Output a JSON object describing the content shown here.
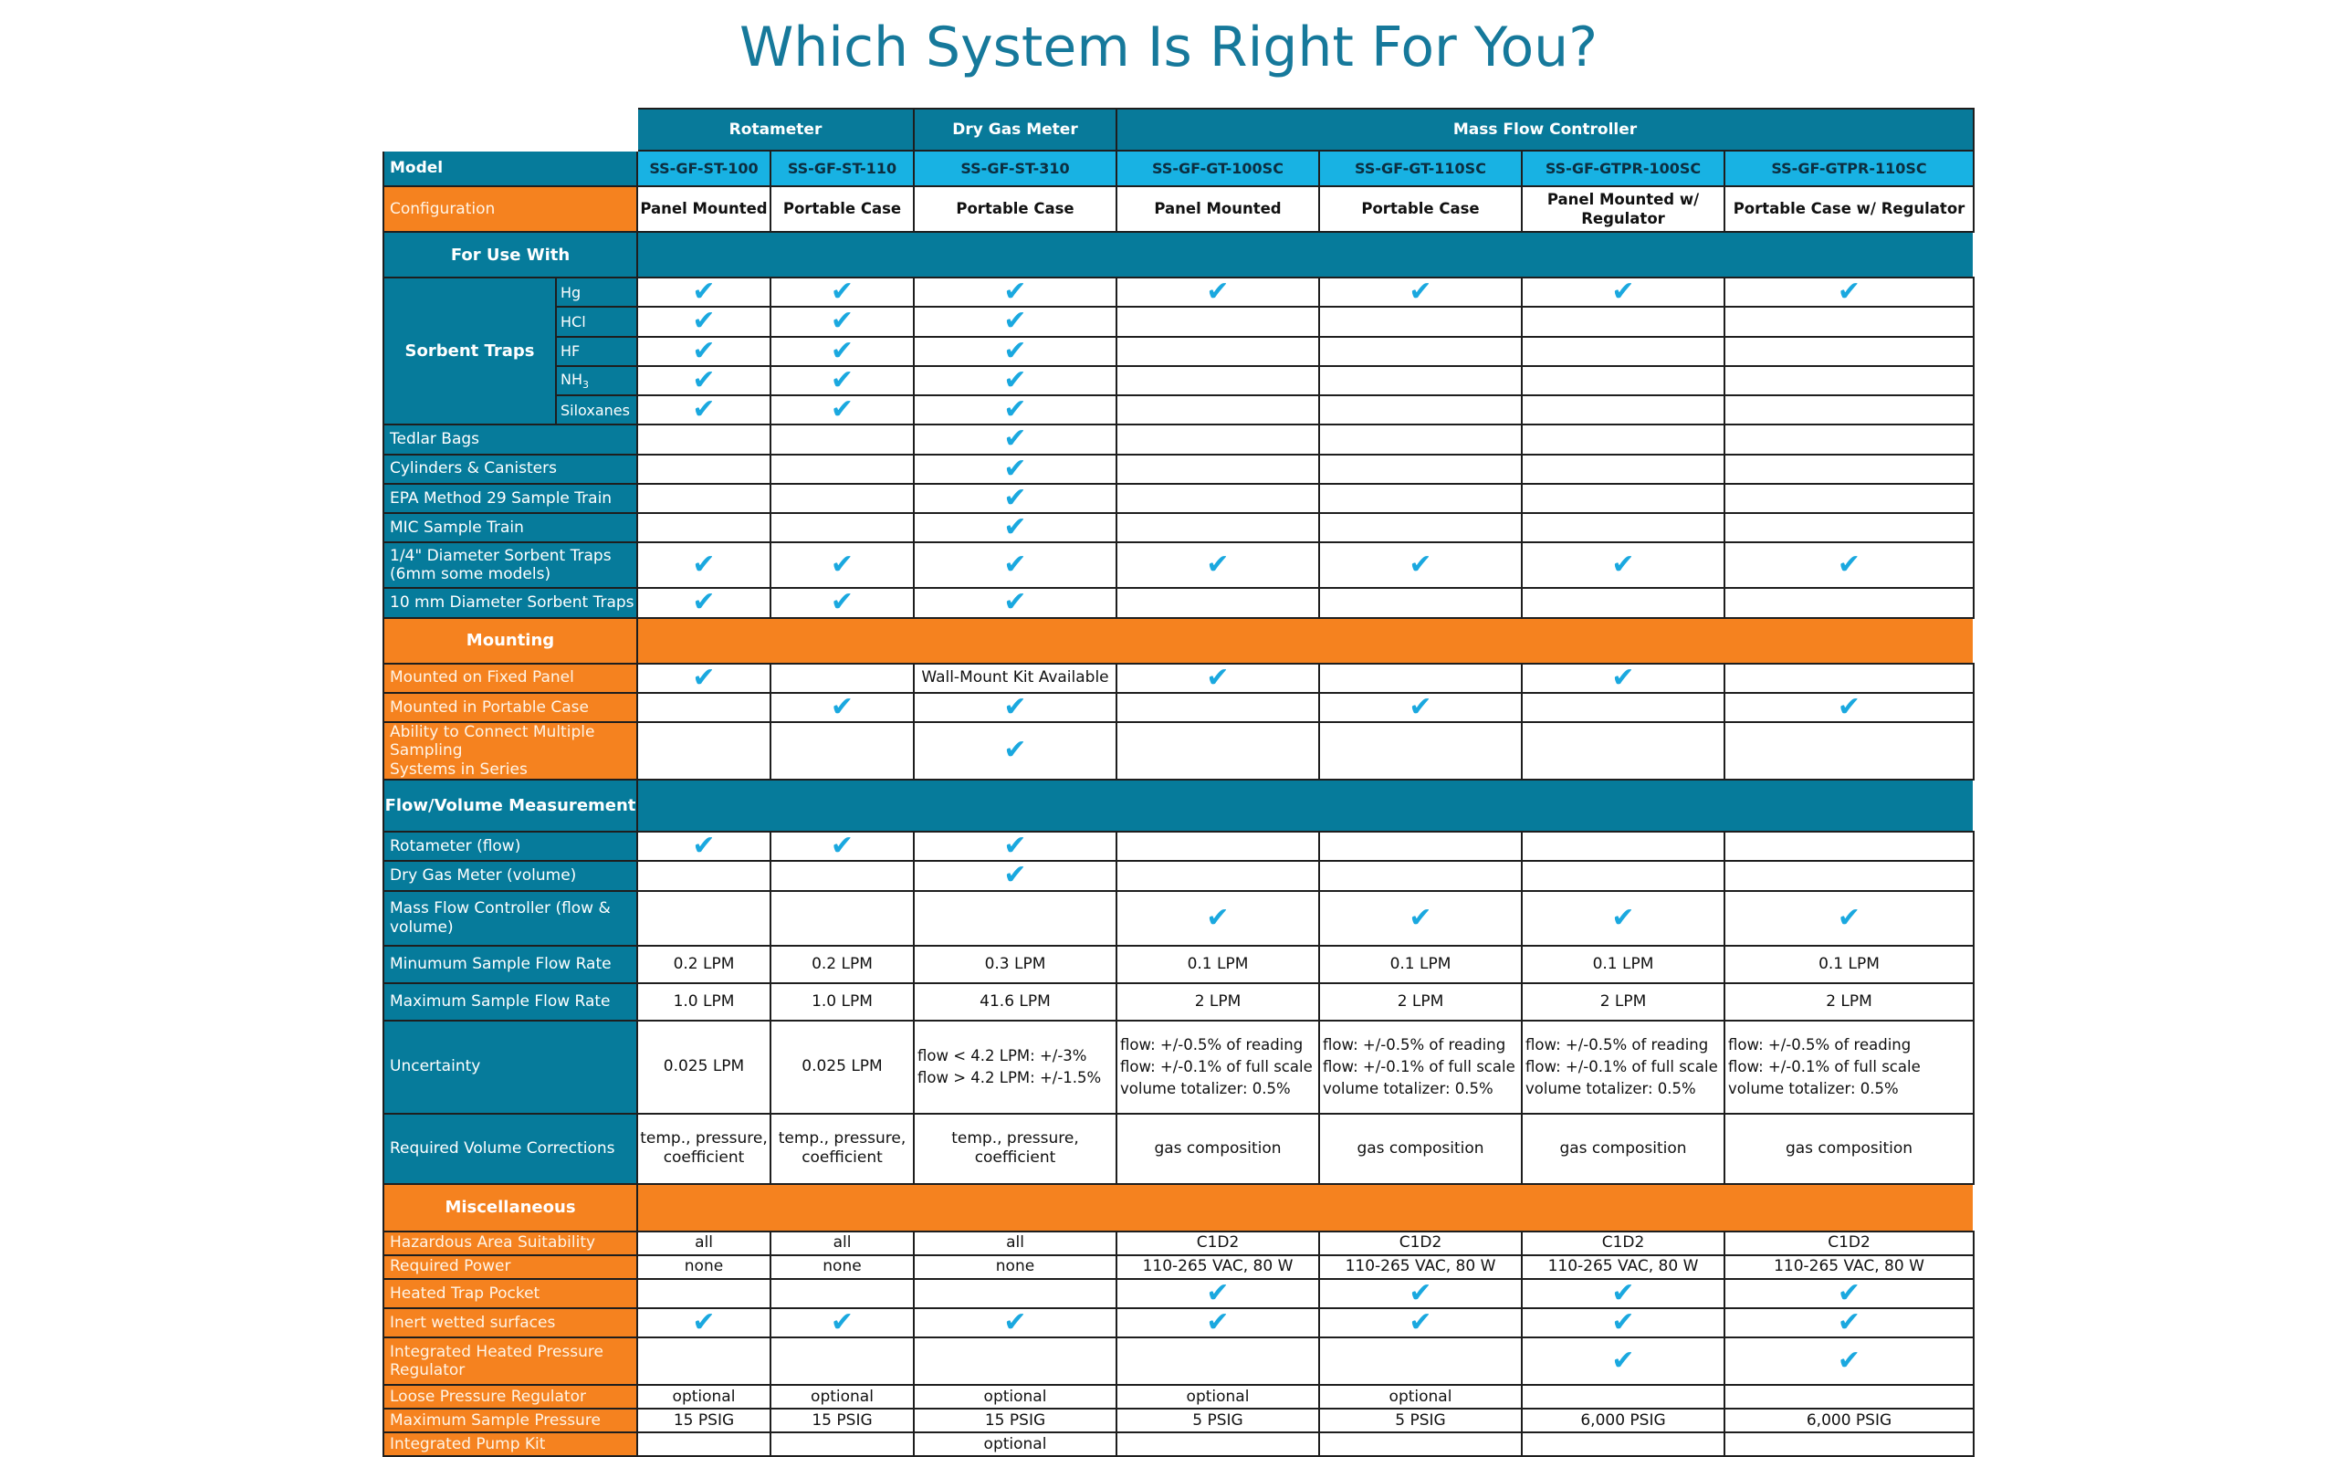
{
  "title": "Which System Is Right For You?",
  "check_color": "#1aa8df",
  "colors": {
    "teal": "#067b9b",
    "orange": "#f5821f",
    "model_blue": "#18b2e3",
    "title": "#16799b"
  },
  "header": {
    "groups": [
      "Rotameter",
      "Dry Gas Meter",
      "Mass Flow Controller"
    ],
    "model_label": "Model",
    "models": [
      "SS-GF-ST-100",
      "SS-GF-ST-110",
      "SS-GF-ST-310",
      "SS-GF-GT-100SC",
      "SS-GF-GT-110SC",
      "SS-GF-GTPR-100SC",
      "SS-GF-GTPR-110SC"
    ],
    "config_label": "Configuration",
    "configs": [
      "Panel Mounted",
      "Portable Case",
      "Portable Case",
      "Panel Mounted",
      "Portable Case",
      "Panel Mounted w/ Regulator",
      "Portable Case w/ Regulator"
    ]
  },
  "sections": {
    "use_with": "For Use With",
    "sorbent_traps": "Sorbent Traps",
    "mounting": "Mounting",
    "flow": "Flow/Volume Measurement",
    "misc": "Miscellaneous"
  },
  "sorbent": {
    "hg": {
      "label": "Hg",
      "cells": [
        true,
        true,
        true,
        true,
        true,
        true,
        true
      ]
    },
    "hcl": {
      "label": "HCl",
      "cells": [
        true,
        true,
        true,
        false,
        false,
        false,
        false
      ]
    },
    "hf": {
      "label": "HF",
      "cells": [
        true,
        true,
        true,
        false,
        false,
        false,
        false
      ]
    },
    "nh3": {
      "label": "NH",
      "sub": "3",
      "cells": [
        true,
        true,
        true,
        false,
        false,
        false,
        false
      ]
    },
    "siloxanes": {
      "label": "Siloxanes",
      "cells": [
        true,
        true,
        true,
        false,
        false,
        false,
        false
      ]
    }
  },
  "use_with": {
    "tedlar": {
      "label": "Tedlar Bags",
      "cells": [
        false,
        false,
        true,
        false,
        false,
        false,
        false
      ]
    },
    "cylinders": {
      "label": "Cylinders & Canisters",
      "cells": [
        false,
        false,
        true,
        false,
        false,
        false,
        false
      ]
    },
    "epa29": {
      "label": "EPA Method 29 Sample Train",
      "cells": [
        false,
        false,
        true,
        false,
        false,
        false,
        false
      ]
    },
    "mic": {
      "label": "MIC Sample Train",
      "cells": [
        false,
        false,
        true,
        false,
        false,
        false,
        false
      ]
    },
    "quarter_inch": {
      "label_1": "1/4\" Diameter Sorbent Traps",
      "label_2": "(6mm some models)",
      "cells": [
        true,
        true,
        true,
        true,
        true,
        true,
        true
      ]
    },
    "ten_mm": {
      "label": "10 mm Diameter Sorbent Traps",
      "cells": [
        true,
        true,
        true,
        false,
        false,
        false,
        false
      ]
    }
  },
  "mounting": {
    "fixed_panel": {
      "label": "Mounted on Fixed Panel",
      "cells": [
        true,
        false,
        "Wall-Mount Kit Available",
        true,
        false,
        true,
        false
      ]
    },
    "portable_case": {
      "label": "Mounted in Portable Case",
      "cells": [
        false,
        true,
        true,
        false,
        true,
        false,
        true
      ]
    },
    "series": {
      "label_1": "Ability to Connect Multiple Sampling",
      "label_2": "Systems in Series",
      "cells": [
        false,
        false,
        true,
        false,
        false,
        false,
        false
      ]
    }
  },
  "flow": {
    "rotameter": {
      "label": "Rotameter (flow)",
      "cells": [
        true,
        true,
        true,
        false,
        false,
        false,
        false
      ]
    },
    "dgm": {
      "label": "Dry Gas Meter (volume)",
      "cells": [
        false,
        false,
        true,
        false,
        false,
        false,
        false
      ]
    },
    "mfc": {
      "label": "Mass Flow Controller (flow & volume)",
      "cells": [
        false,
        false,
        false,
        true,
        true,
        true,
        true
      ]
    },
    "min_rate": {
      "label": "Minumum Sample Flow Rate",
      "cells": [
        "0.2 LPM",
        "0.2 LPM",
        "0.3 LPM",
        "0.1 LPM",
        "0.1 LPM",
        "0.1 LPM",
        "0.1 LPM"
      ]
    },
    "max_rate": {
      "label": "Maximum Sample Flow Rate",
      "cells": [
        "1.0 LPM",
        "1.0 LPM",
        "41.6 LPM",
        "2 LPM",
        "2 LPM",
        "2 LPM",
        "2 LPM"
      ]
    },
    "uncertainty": {
      "label": "Uncertainty",
      "rotameter": "0.025 LPM",
      "dgm_1": "flow < 4.2 LPM: +/-3%",
      "dgm_2": "flow > 4.2 LPM: +/-1.5%",
      "mfc_1": "flow: +/-0.5% of reading",
      "mfc_2": "flow: +/-0.1% of full scale",
      "mfc_3": "volume totalizer: 0.5%"
    },
    "corrections": {
      "label": "Required Volume Corrections",
      "rot_1": "temp., pressure,",
      "rot_2": "coefficient",
      "dgm": "temp., pressure, coefficient",
      "mfc": "gas composition"
    }
  },
  "misc": {
    "hazardous": {
      "label": "Hazardous Area Suitability",
      "cells": [
        "all",
        "all",
        "all",
        "C1D2",
        "C1D2",
        "C1D2",
        "C1D2"
      ]
    },
    "power": {
      "label": "Required Power",
      "cells": [
        "none",
        "none",
        "none",
        "110-265 VAC, 80 W",
        "110-265 VAC, 80 W",
        "110-265 VAC, 80 W",
        "110-265 VAC, 80 W"
      ]
    },
    "heated_pocket": {
      "label": "Heated Trap Pocket",
      "cells": [
        false,
        false,
        false,
        true,
        true,
        true,
        true
      ]
    },
    "inert": {
      "label": "Inert wetted surfaces",
      "cells": [
        true,
        true,
        true,
        true,
        true,
        true,
        true
      ]
    },
    "heated_regulator": {
      "label": "Integrated Heated Pressure Regulator",
      "cells": [
        false,
        false,
        false,
        false,
        false,
        true,
        true
      ]
    },
    "loose_regulator": {
      "label": "Loose Pressure Regulator",
      "cells": [
        "optional",
        "optional",
        "optional",
        "optional",
        "optional",
        "",
        ""
      ]
    },
    "max_pressure": {
      "label": "Maximum Sample Pressure",
      "cells": [
        "15 PSIG",
        "15 PSIG",
        "15 PSIG",
        "5 PSIG",
        "5 PSIG",
        "6,000 PSIG",
        "6,000 PSIG"
      ]
    },
    "pump_kit": {
      "label": "Integrated Pump Kit",
      "cells": [
        "",
        "",
        "optional",
        "",
        "",
        "",
        ""
      ]
    }
  }
}
